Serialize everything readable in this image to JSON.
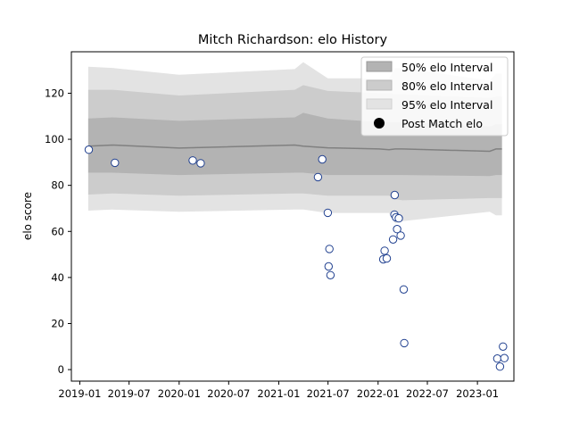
{
  "chart_data": {
    "type": "scatter",
    "title": "Mitch Richardson: elo History",
    "xlabel": "",
    "ylabel": "elo score",
    "x_ticks": [
      "2019-01",
      "2019-07",
      "2020-01",
      "2020-07",
      "2021-01",
      "2021-07",
      "2022-01",
      "2022-07",
      "2023-01"
    ],
    "y_ticks": [
      0,
      20,
      40,
      60,
      80,
      100,
      120
    ],
    "xlim": [
      "2018-12-01",
      "2023-05-15"
    ],
    "ylim": [
      -5,
      138
    ],
    "grid": false,
    "legend_position": "upper-right",
    "legend": [
      "50% elo Interval",
      "80% elo Interval",
      "95% elo Interval",
      "Post Match elo"
    ],
    "colors": {
      "band_50": "#b3b3b3",
      "band_80": "#cccccc",
      "band_95": "#e3e3e3",
      "mean_line": "#808080",
      "marker_edge": "#1f3f8f",
      "marker_fill": "#ffffff"
    },
    "bands": {
      "dates": [
        "2019-02-01",
        "2019-05-01",
        "2020-01-01",
        "2021-03-01",
        "2021-04-01",
        "2021-06-30",
        "2022-01-05",
        "2022-02-10",
        "2022-03-05",
        "2022-04-01",
        "2023-02-15",
        "2023-03-10",
        "2023-04-01"
      ],
      "mean": [
        97,
        97.5,
        96.2,
        97.5,
        97,
        96.3,
        95.8,
        95.5,
        95.8,
        95.8,
        94.8,
        95.8,
        95.8
      ],
      "p50": [
        [
          85.5,
          109
        ],
        [
          85.5,
          109.5
        ],
        [
          84.5,
          108
        ],
        [
          85.5,
          109.5
        ],
        [
          85.5,
          111.5
        ],
        [
          84.5,
          109
        ],
        [
          84.5,
          107.5
        ],
        [
          84.5,
          107.5
        ],
        [
          84.5,
          107.5
        ],
        [
          84.5,
          107.5
        ],
        [
          84,
          105.5
        ],
        [
          84.5,
          106.5
        ],
        [
          84.5,
          106.5
        ]
      ],
      "p80": [
        [
          76,
          121.5
        ],
        [
          76.5,
          121.5
        ],
        [
          75.5,
          119
        ],
        [
          76.5,
          121.5
        ],
        [
          76.5,
          123.5
        ],
        [
          75.5,
          121
        ],
        [
          75.5,
          120
        ],
        [
          75.5,
          120
        ],
        [
          74,
          119.5
        ],
        [
          73.5,
          119.5
        ],
        [
          74.5,
          118
        ],
        [
          74.5,
          118.5
        ],
        [
          74.5,
          118.5
        ]
      ],
      "p95": [
        [
          69,
          131.5
        ],
        [
          69.5,
          131
        ],
        [
          68.5,
          128
        ],
        [
          69.5,
          130.5
        ],
        [
          69.5,
          133.5
        ],
        [
          68,
          126.5
        ],
        [
          68,
          126.5
        ],
        [
          68,
          126.5
        ],
        [
          63.5,
          131
        ],
        [
          64.5,
          131
        ],
        [
          68.5,
          125.5
        ],
        [
          67,
          128.5
        ],
        [
          67,
          128.5
        ]
      ]
    },
    "points": [
      {
        "x": "2019-02-03",
        "y": 95.5
      },
      {
        "x": "2019-05-10",
        "y": 89.8
      },
      {
        "x": "2020-02-20",
        "y": 90.8
      },
      {
        "x": "2020-03-20",
        "y": 89.6
      },
      {
        "x": "2021-05-25",
        "y": 83.6
      },
      {
        "x": "2021-06-10",
        "y": 91.3
      },
      {
        "x": "2021-06-30",
        "y": 68.1
      },
      {
        "x": "2021-07-03",
        "y": 44.8
      },
      {
        "x": "2021-07-06",
        "y": 52.4
      },
      {
        "x": "2021-07-10",
        "y": 41.0
      },
      {
        "x": "2022-01-20",
        "y": 47.9
      },
      {
        "x": "2022-01-25",
        "y": 51.6
      },
      {
        "x": "2022-02-02",
        "y": 48.3
      },
      {
        "x": "2022-02-25",
        "y": 56.5
      },
      {
        "x": "2022-03-02",
        "y": 67.3
      },
      {
        "x": "2022-03-03",
        "y": 75.8
      },
      {
        "x": "2022-03-08",
        "y": 66.1
      },
      {
        "x": "2022-03-12",
        "y": 61.0
      },
      {
        "x": "2022-03-18",
        "y": 65.7
      },
      {
        "x": "2022-03-25",
        "y": 58.2
      },
      {
        "x": "2022-04-05",
        "y": 34.8
      },
      {
        "x": "2022-04-07",
        "y": 11.5
      },
      {
        "x": "2023-03-15",
        "y": 4.8
      },
      {
        "x": "2023-03-25",
        "y": 1.3
      },
      {
        "x": "2023-04-05",
        "y": 10.0
      },
      {
        "x": "2023-04-10",
        "y": 5.0
      }
    ]
  }
}
